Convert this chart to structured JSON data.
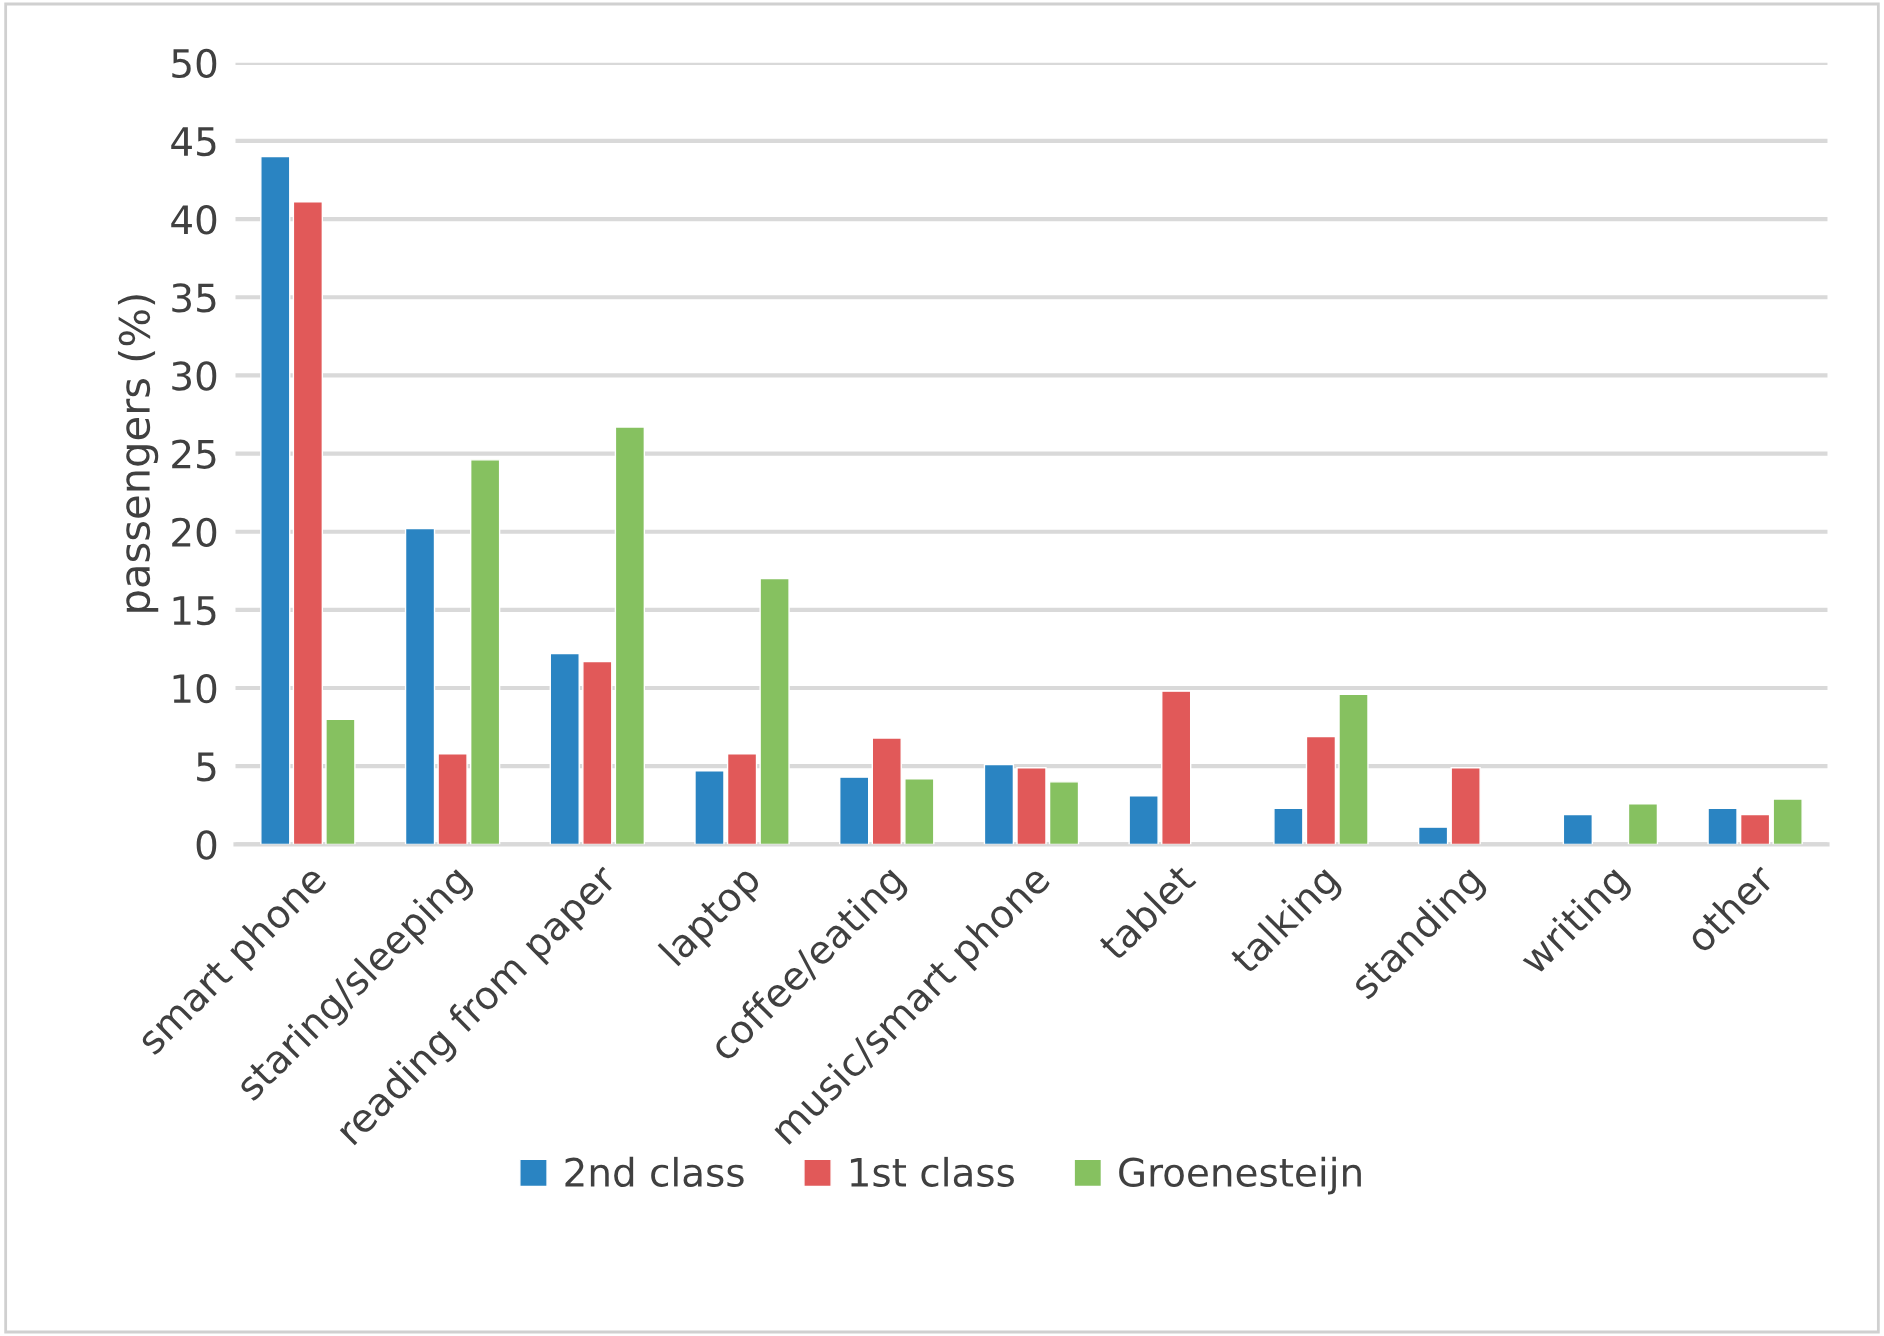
{
  "chart_data": {
    "type": "bar",
    "ylabel": "passengers (%)",
    "categories": [
      "smart phone",
      "staring/sleeping",
      "reading from paper",
      "laptop",
      "coffee/eating",
      "music/smart phone",
      "tablet",
      "talking",
      "standing",
      "writing",
      "other"
    ],
    "series": [
      {
        "name": "2nd class",
        "color": "#2a84c2",
        "values": [
          44.0,
          20.2,
          12.2,
          4.7,
          4.3,
          5.1,
          3.1,
          2.3,
          1.1,
          1.9,
          2.3
        ]
      },
      {
        "name": "1st class",
        "color": "#e15959",
        "values": [
          41.1,
          5.8,
          11.7,
          5.8,
          6.8,
          4.9,
          9.8,
          6.9,
          4.9,
          null,
          1.9
        ]
      },
      {
        "name": "Groenesteijn",
        "color": "#86c160",
        "values": [
          8.0,
          24.6,
          26.7,
          17.0,
          4.2,
          4.0,
          null,
          9.6,
          null,
          2.6,
          2.9
        ]
      }
    ],
    "ylim": [
      0,
      50
    ],
    "yticks": [
      0,
      5,
      10,
      15,
      20,
      25,
      30,
      35,
      40,
      45,
      50
    ],
    "grid": "y",
    "legend": "bottom"
  }
}
